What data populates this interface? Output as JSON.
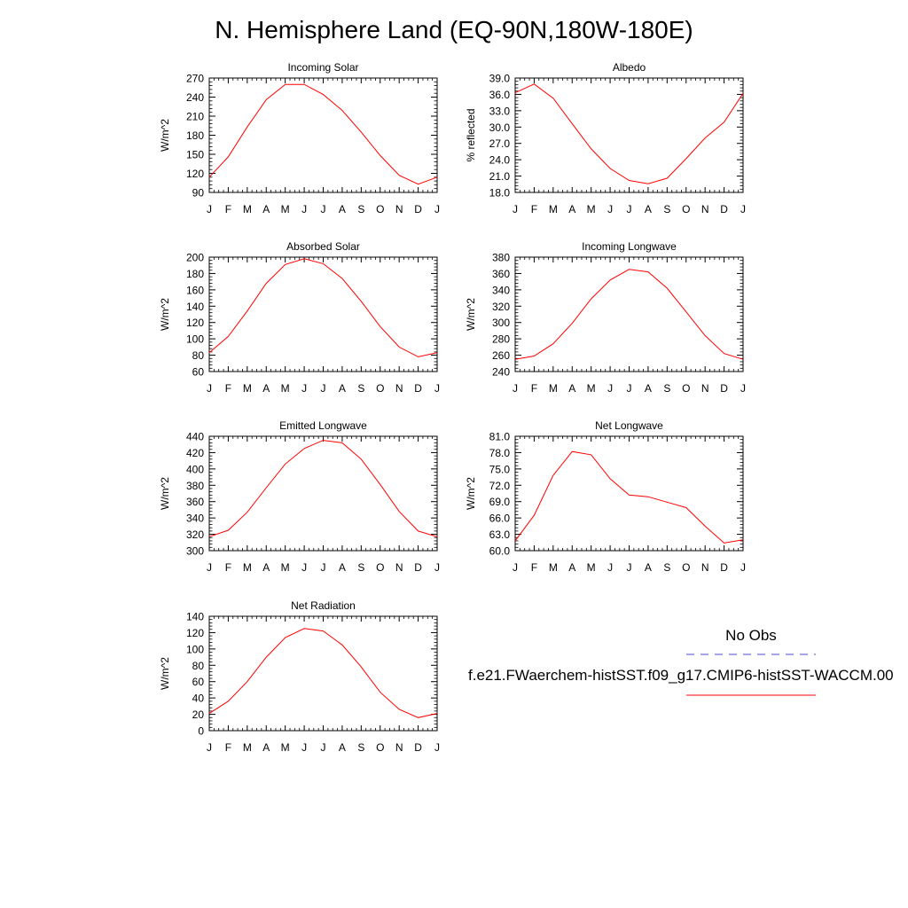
{
  "figure": {
    "title": "N. Hemisphere Land (EQ-90N,180W-180E)"
  },
  "months": [
    "J",
    "F",
    "M",
    "A",
    "M",
    "J",
    "J",
    "A",
    "S",
    "O",
    "N",
    "D",
    "J"
  ],
  "legend": {
    "obs_label": "No Obs",
    "model_label": "f.e21.FWaerchem-histSST.f09_g17.CMIP6-histSST-WACCM.00",
    "obs_color": "#4b4bd6",
    "model_color": "#ff0000"
  },
  "chart_data": [
    {
      "type": "line",
      "title": "Incoming Solar",
      "ylabel": "W/m^2",
      "ylim": [
        90,
        270
      ],
      "yticks": [
        "90",
        "120",
        "150",
        "180",
        "210",
        "240",
        "270"
      ],
      "series": [
        {
          "values": [
            114,
            146,
            193,
            236,
            260,
            260,
            244,
            219,
            185,
            148,
            117,
            103,
            114
          ],
          "color": "#ff0000"
        }
      ]
    },
    {
      "type": "line",
      "title": "Albedo",
      "ylabel": "% reflected",
      "ylim": [
        18,
        39
      ],
      "yticks": [
        "18.0",
        "21.0",
        "24.0",
        "27.0",
        "30.0",
        "33.0",
        "36.0",
        "39.0"
      ],
      "series": [
        {
          "values": [
            36.3,
            37.9,
            35.3,
            30.6,
            26.0,
            22.4,
            20.2,
            19.6,
            20.6,
            24.2,
            28.0,
            30.9,
            36.2
          ],
          "color": "#ff0000"
        }
      ]
    },
    {
      "type": "line",
      "title": "Absorbed Solar",
      "ylabel": "W/m^2",
      "ylim": [
        60,
        200
      ],
      "yticks": [
        "60",
        "80",
        "100",
        "120",
        "140",
        "160",
        "180",
        "200"
      ],
      "series": [
        {
          "values": [
            83,
            103,
            134,
            168,
            191,
            198,
            192,
            174,
            146,
            115,
            90,
            78,
            83
          ],
          "color": "#ff0000"
        }
      ]
    },
    {
      "type": "line",
      "title": "Incoming Longwave",
      "ylabel": "W/m^2",
      "ylim": [
        240,
        380
      ],
      "yticks": [
        "240",
        "260",
        "280",
        "300",
        "320",
        "340",
        "360",
        "380"
      ],
      "series": [
        {
          "values": [
            255,
            259,
            274,
            299,
            329,
            352,
            365,
            362,
            342,
            313,
            284,
            262,
            255
          ],
          "color": "#ff0000"
        }
      ]
    },
    {
      "type": "line",
      "title": "Emitted Longwave",
      "ylabel": "W/m^2",
      "ylim": [
        300,
        440
      ],
      "yticks": [
        "300",
        "320",
        "340",
        "360",
        "380",
        "400",
        "420",
        "440"
      ],
      "series": [
        {
          "values": [
            317,
            325,
            347,
            377,
            406,
            425,
            435,
            432,
            412,
            381,
            348,
            324,
            317
          ],
          "color": "#ff0000"
        }
      ]
    },
    {
      "type": "line",
      "title": "Net Longwave",
      "ylabel": "W/m^2",
      "ylim": [
        60,
        81
      ],
      "yticks": [
        "60.0",
        "63.0",
        "66.0",
        "69.0",
        "72.0",
        "75.0",
        "78.0",
        "81.0"
      ],
      "series": [
        {
          "values": [
            61.8,
            66.5,
            73.8,
            78.2,
            77.6,
            73.2,
            70.2,
            69.9,
            68.9,
            67.9,
            64.5,
            61.4,
            62.0
          ],
          "color": "#ff0000"
        }
      ]
    },
    {
      "type": "line",
      "title": "Net Radiation",
      "ylabel": "W/m^2",
      "ylim": [
        0,
        140
      ],
      "yticks": [
        "0",
        "20",
        "40",
        "60",
        "80",
        "100",
        "120",
        "140"
      ],
      "series": [
        {
          "values": [
            21,
            36,
            60,
            90,
            114,
            125,
            122,
            105,
            78,
            47,
            26,
            16,
            21
          ],
          "color": "#ff0000"
        }
      ]
    }
  ]
}
